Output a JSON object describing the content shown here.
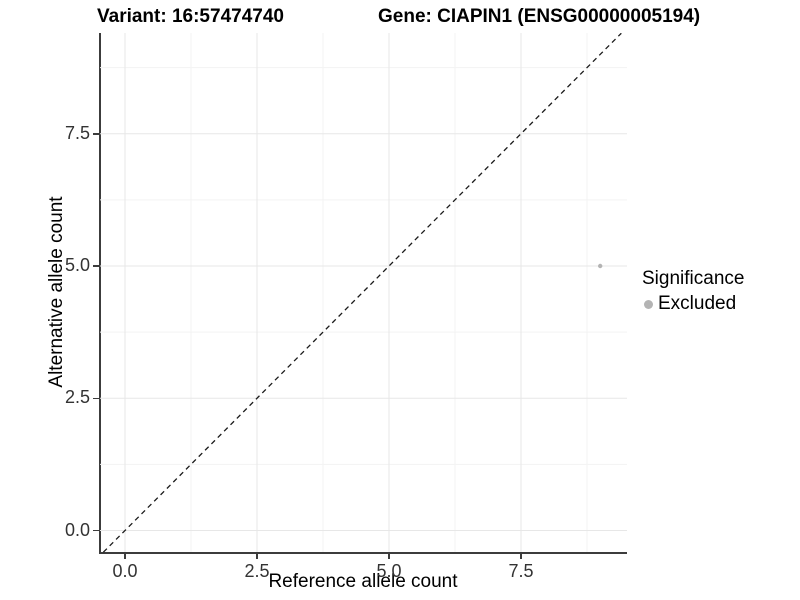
{
  "chart_data": {
    "type": "scatter",
    "titles": {
      "variant": "Variant: 16:57474740",
      "gene": "Gene: CIAPIN1 (ENSG00000005194)"
    },
    "xlabel": "Reference allele count",
    "ylabel": "Alternative allele count",
    "tick_values": [
      0,
      2.5,
      5,
      7.5
    ],
    "tick_labels": [
      "0.0",
      "2.5",
      "5.0",
      "7.5"
    ],
    "minor_tick_values": [
      1.25,
      3.75,
      6.25,
      8.75
    ],
    "xlim": [
      -0.47,
      9.49
    ],
    "ylim": [
      -0.41,
      9.4
    ],
    "grid": true,
    "reference_line": {
      "type": "identity",
      "style": "dashed",
      "color": "#1a1a1a"
    },
    "points": [
      {
        "x": 9,
        "y": 5,
        "significance": "Excluded"
      }
    ],
    "legend": {
      "title": "Significance",
      "position": "right",
      "items": [
        {
          "label": "Excluded",
          "color": "#b4b4b4"
        }
      ]
    },
    "colors": {
      "point": "#b4b4b4",
      "grid_major": "#e7e7e7",
      "grid_minor": "#f3f3f3",
      "axis_line": "#3c3c3c",
      "tick_label": "#333333",
      "text": "#000000"
    }
  }
}
